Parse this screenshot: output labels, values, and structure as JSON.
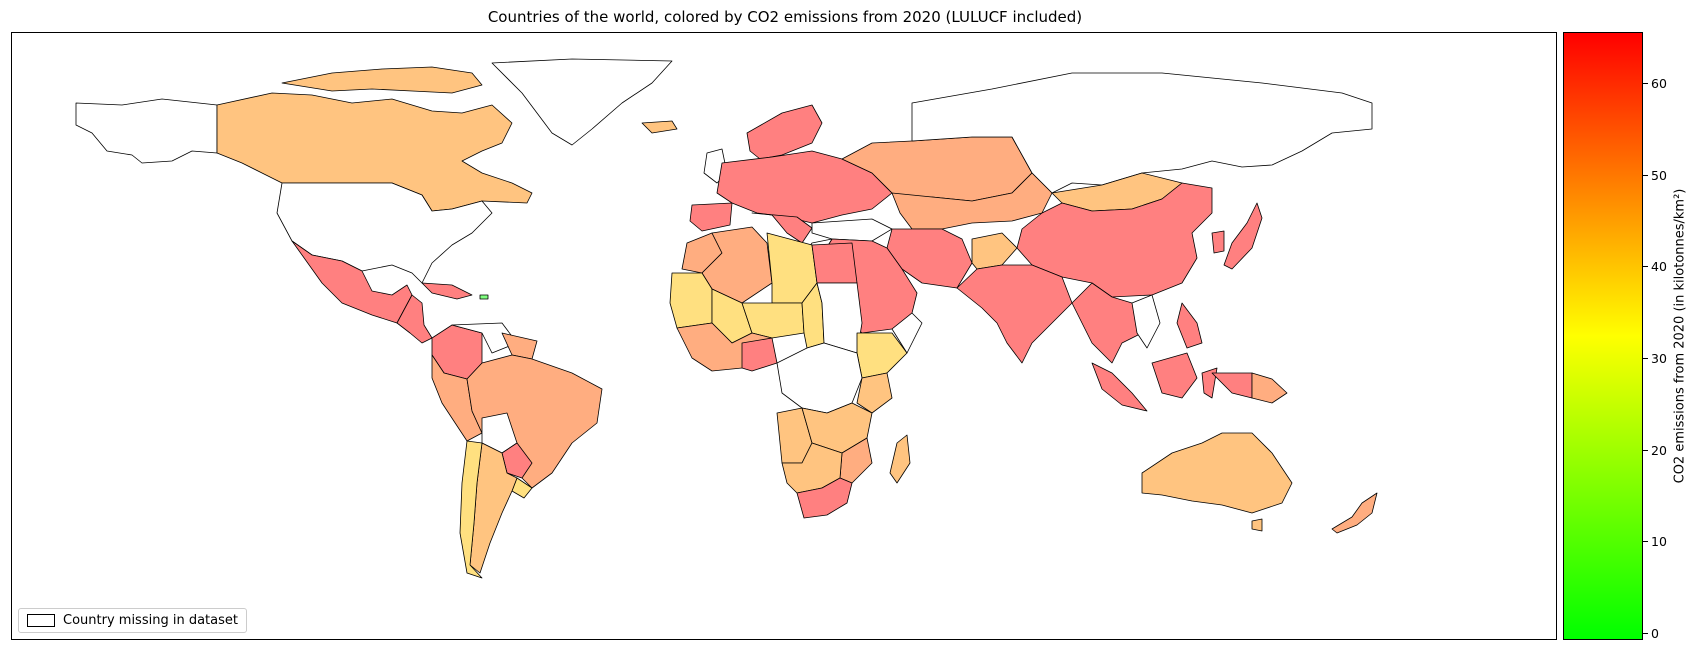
{
  "title": "Countries of the world, colored by CO2 emissions from 2020 (LULUCF included)",
  "legend": {
    "label": "Country missing in dataset"
  },
  "colorbar": {
    "label": "CO2 emissions from 2020 (in kilotonnes/km²)",
    "ticks": [
      "0",
      "10",
      "20",
      "30",
      "40",
      "50",
      "60"
    ],
    "range": [
      0,
      65
    ],
    "color_low": "#00ff00",
    "color_mid": "#ffff00",
    "color_high": "#ff0000"
  },
  "map": {
    "fill_colors": {
      "high": "#ff8080",
      "mid_high": "#ffad80",
      "mid": "#ffc480",
      "low": "#ffe080",
      "missing": "#ffffff",
      "green": "#80ff80"
    }
  }
}
